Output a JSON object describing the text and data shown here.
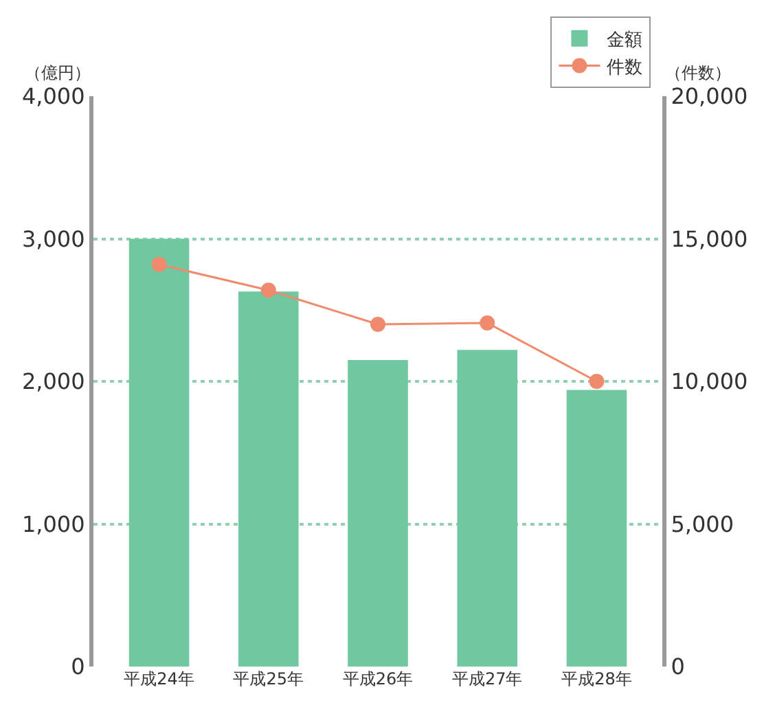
{
  "chart_data": {
    "type": "bar",
    "ylabel": "（億円）",
    "y2label": "（件数）",
    "categories": [
      "平成24年",
      "平成25年",
      "平成26年",
      "平成27年",
      "平成28年"
    ],
    "series": [
      {
        "name": "金額",
        "color": "#6fc8a0",
        "values": [
          3000,
          2630,
          2150,
          2220,
          1940
        ]
      },
      {
        "name": "件数",
        "type": "line",
        "axis": "y2",
        "color": "#f08a6c",
        "marker": "circle",
        "values": [
          14100,
          13200,
          12000,
          12050,
          10000
        ]
      }
    ],
    "ylim": [
      0,
      4000
    ],
    "yticks": [
      {
        "value": 0,
        "label": "0"
      },
      {
        "value": 1000,
        "label": "1,000"
      },
      {
        "value": 2000,
        "label": "2,000"
      },
      {
        "value": 3000,
        "label": "3,000"
      },
      {
        "value": 4000,
        "label": "4,000"
      }
    ],
    "y2lim": [
      0,
      20000
    ],
    "y2ticks": [
      {
        "value": 0,
        "label": "0"
      },
      {
        "value": 5000,
        "label": "5,000"
      },
      {
        "value": 10000,
        "label": "10,000"
      },
      {
        "value": 15000,
        "label": "15,000"
      },
      {
        "value": 20000,
        "label": "20,000"
      }
    ],
    "grid": "y",
    "legend": "top right"
  }
}
